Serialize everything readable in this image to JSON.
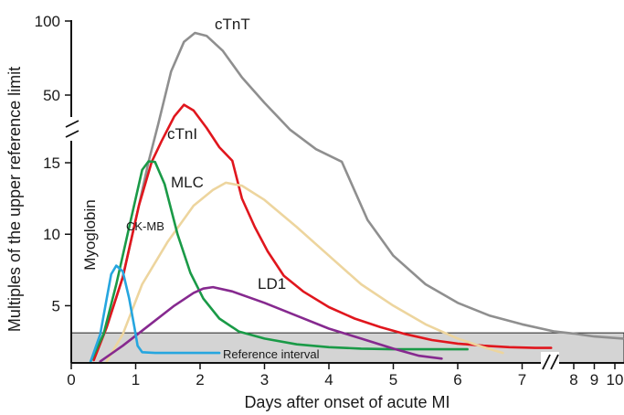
{
  "chart_data": {
    "type": "line",
    "title": "",
    "xlabel": "Days after onset of acute MI",
    "ylabel": "Multiples of the upper reference limit",
    "x_axis": {
      "ticks": [
        "0",
        "1",
        "2",
        "3",
        "4",
        "5",
        "6",
        "7",
        "8",
        "9",
        "10"
      ],
      "tick_values": [
        0,
        1,
        2,
        3,
        4,
        5,
        6,
        7,
        8,
        9,
        10
      ],
      "break_between": [
        7.5,
        8
      ],
      "xlim": [
        0,
        10.4
      ]
    },
    "y_axis": {
      "ticks": [
        "5",
        "10",
        "15",
        "50",
        "100"
      ],
      "tick_values": [
        5,
        10,
        15,
        50,
        100
      ],
      "break_between": [
        15,
        50
      ],
      "ylim": [
        1,
        100
      ]
    },
    "reference_interval": {
      "label": "Reference interval",
      "y_range": [
        1,
        3.1
      ],
      "color": "#d4d4d4"
    },
    "series": [
      {
        "name": "cTnT",
        "color": "#8f8f8f",
        "points": [
          [
            0.35,
            1.3
          ],
          [
            0.55,
            3.5
          ],
          [
            0.8,
            7
          ],
          [
            1.05,
            12
          ],
          [
            1.2,
            15.5
          ],
          [
            1.35,
            35
          ],
          [
            1.55,
            66
          ],
          [
            1.75,
            86
          ],
          [
            1.92,
            92
          ],
          [
            2.1,
            90
          ],
          [
            2.35,
            80
          ],
          [
            2.65,
            62
          ],
          [
            3,
            46
          ],
          [
            3.4,
            32
          ],
          [
            3.8,
            22
          ],
          [
            4.2,
            15.5
          ],
          [
            4.6,
            11
          ],
          [
            5,
            8.5
          ],
          [
            5.5,
            6.5
          ],
          [
            6,
            5.2
          ],
          [
            6.5,
            4.3
          ],
          [
            7,
            3.7
          ],
          [
            7.5,
            3.2
          ],
          [
            8,
            3.05
          ],
          [
            9,
            2.85
          ],
          [
            10.4,
            2.7
          ]
        ]
      },
      {
        "name": "cTnI",
        "color": "#e0161d",
        "points": [
          [
            0.35,
            1.2
          ],
          [
            0.55,
            3.5
          ],
          [
            0.8,
            7
          ],
          [
            1.05,
            12
          ],
          [
            1.25,
            15.5
          ],
          [
            1.4,
            26
          ],
          [
            1.6,
            39
          ],
          [
            1.75,
            45
          ],
          [
            1.9,
            42
          ],
          [
            2.1,
            33
          ],
          [
            2.3,
            23
          ],
          [
            2.5,
            16
          ],
          [
            2.65,
            12.5
          ],
          [
            2.85,
            10.5
          ],
          [
            3.05,
            8.8
          ],
          [
            3.3,
            7.1
          ],
          [
            3.6,
            6
          ],
          [
            4,
            4.9
          ],
          [
            4.4,
            4.1
          ],
          [
            4.8,
            3.5
          ],
          [
            5.2,
            3
          ],
          [
            5.6,
            2.6
          ],
          [
            6,
            2.35
          ],
          [
            6.4,
            2.2
          ],
          [
            6.8,
            2.1
          ],
          [
            7.2,
            2.05
          ],
          [
            7.45,
            2.05
          ]
        ]
      },
      {
        "name": "MLC",
        "color": "#edd59e",
        "points": [
          [
            0.55,
            1.1
          ],
          [
            0.8,
            3
          ],
          [
            1.1,
            6.5
          ],
          [
            1.5,
            9.5
          ],
          [
            1.9,
            12
          ],
          [
            2.2,
            13.1
          ],
          [
            2.4,
            13.6
          ],
          [
            2.65,
            13.4
          ],
          [
            3,
            12.4
          ],
          [
            3.5,
            10.5
          ],
          [
            4,
            8.5
          ],
          [
            4.5,
            6.5
          ],
          [
            5,
            5
          ],
          [
            5.5,
            3.7
          ],
          [
            6,
            2.7
          ],
          [
            6.4,
            2.1
          ],
          [
            6.7,
            1.7
          ]
        ]
      },
      {
        "name": "CK-MB",
        "color": "#1a9a47",
        "points": [
          [
            0.3,
            1.1
          ],
          [
            0.5,
            3
          ],
          [
            0.7,
            6.5
          ],
          [
            0.9,
            10.5
          ],
          [
            1.1,
            14.5
          ],
          [
            1.2,
            15.7
          ],
          [
            1.3,
            15.4
          ],
          [
            1.45,
            13.5
          ],
          [
            1.65,
            10
          ],
          [
            1.85,
            7.3
          ],
          [
            2.05,
            5.5
          ],
          [
            2.3,
            4.1
          ],
          [
            2.6,
            3.2
          ],
          [
            3,
            2.7
          ],
          [
            3.5,
            2.3
          ],
          [
            4,
            2.1
          ],
          [
            4.5,
            2
          ],
          [
            5,
            1.95
          ],
          [
            5.5,
            1.95
          ],
          [
            6.15,
            1.95
          ]
        ]
      },
      {
        "name": "LD1",
        "color": "#86298f",
        "points": [
          [
            0.45,
            1.1
          ],
          [
            0.8,
            2.2
          ],
          [
            1.2,
            3.6
          ],
          [
            1.6,
            5
          ],
          [
            1.9,
            5.9
          ],
          [
            2.05,
            6.2
          ],
          [
            2.2,
            6.3
          ],
          [
            2.5,
            6
          ],
          [
            3,
            5.2
          ],
          [
            3.5,
            4.3
          ],
          [
            4,
            3.4
          ],
          [
            4.5,
            2.7
          ],
          [
            5,
            2
          ],
          [
            5.4,
            1.5
          ],
          [
            5.75,
            1.3
          ]
        ]
      },
      {
        "name": "Myoglobin",
        "color": "#26a6df",
        "points": [
          [
            0.3,
            1.1
          ],
          [
            0.45,
            3
          ],
          [
            0.55,
            5.5
          ],
          [
            0.62,
            7.2
          ],
          [
            0.7,
            7.8
          ],
          [
            0.8,
            7.4
          ],
          [
            0.9,
            5.5
          ],
          [
            0.98,
            3.5
          ],
          [
            1.03,
            2.2
          ],
          [
            1.1,
            1.75
          ],
          [
            1.3,
            1.7
          ],
          [
            1.6,
            1.7
          ],
          [
            2,
            1.7
          ],
          [
            2.3,
            1.7
          ]
        ]
      }
    ]
  }
}
